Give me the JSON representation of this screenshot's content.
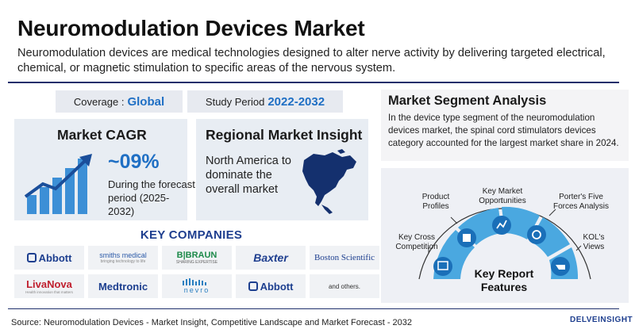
{
  "header": {
    "title": "Neuromodulation Devices Market",
    "subtitle": "Neuromodulation devices are medical technologies designed to alter nerve activity by delivering targeted electrical, chemical, or magnetic stimulation to specific areas of the nervous system."
  },
  "coverage": {
    "label": "Coverage :",
    "value": "Global"
  },
  "study_period": {
    "label": "Study Period",
    "value": "2022-2032"
  },
  "market_cagr": {
    "title": "Market CAGR",
    "value": "~09%",
    "note": "During the forecast period (2025-2032)"
  },
  "regional_insight": {
    "title": "Regional Market Insight",
    "text": "North America to dominate the overall market"
  },
  "key_companies": {
    "title": "KEY COMPANIES",
    "logos": [
      {
        "name": "Abbott"
      },
      {
        "name": "smiths medical",
        "tagline": "bringing technology to life"
      },
      {
        "name": "B|BRAUN",
        "tagline": "SHARING EXPERTISE"
      },
      {
        "name": "Baxter"
      },
      {
        "name": "Boston Scientific"
      },
      {
        "name": "LivaNova",
        "tagline": "Health innovation that matters"
      },
      {
        "name": "Medtronic"
      },
      {
        "name": "nevro"
      },
      {
        "name": "Abbott"
      },
      {
        "name": "and others."
      }
    ]
  },
  "market_segment": {
    "title": "Market Segment Analysis",
    "text": "In the device type segment of the neuromodulation devices market, the spinal cord stimulators devices category accounted for the largest market share in 2024."
  },
  "key_report_features": {
    "center": "Key Report Features",
    "items": [
      {
        "label": "Key Cross Competition",
        "icon": "competition-icon"
      },
      {
        "label": "Product Profiles",
        "icon": "product-icon"
      },
      {
        "label": "Key Market Opportunities",
        "icon": "opportunity-icon"
      },
      {
        "label": "Porter's Five Forces Analysis",
        "icon": "analysis-icon"
      },
      {
        "label": "KOL's Views",
        "icon": "kol-icon"
      }
    ]
  },
  "footer": {
    "source": "Source: Neuromodulation Devices - Market Insight, Competitive Landscape and Market Forecast - 2032",
    "brand": "DELVEINSIGHT"
  },
  "colors": {
    "accent": "#1f6fc4",
    "navy": "#1f2f6b",
    "card_bg": "#e8edf3",
    "segment_blue": "#4aa8e0"
  }
}
